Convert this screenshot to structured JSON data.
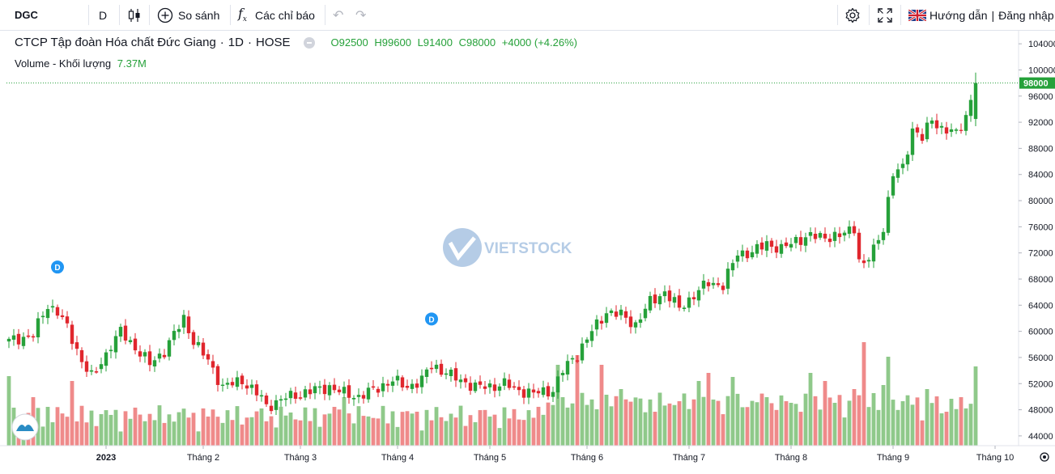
{
  "toolbar": {
    "symbol": "DGC",
    "interval": "D",
    "compare_label": "So sánh",
    "indicators_label": "Các chỉ báo",
    "help_label": "Hướng dẫn",
    "login_label": "Đăng nhập"
  },
  "legend": {
    "name": "CTCP Tập đoàn Hóa chất Đức Giang",
    "interval": "1D",
    "exchange": "HOSE",
    "open": "O92500",
    "high": "H99600",
    "low": "L91400",
    "close": "C98000",
    "change": "+4000 (+4.26%)",
    "volume_label": "Volume - Khối lượng",
    "volume_value": "7.37M"
  },
  "watermark": "VIETSTOCK",
  "colors": {
    "up": "#26a13a",
    "down": "#e0262d",
    "vol_up": "#8fc98a",
    "vol_down": "#ef8a8a",
    "marker": "#2196f3"
  },
  "chart_data": {
    "type": "candlestick",
    "y_ticks": [
      "104000",
      "100000",
      "96000",
      "92000",
      "88000",
      "84000",
      "80000",
      "76000",
      "72000",
      "68000",
      "64000",
      "60000",
      "56000",
      "52000",
      "48000",
      "44000"
    ],
    "y_tick_values": [
      104000,
      100000,
      96000,
      92000,
      88000,
      84000,
      80000,
      76000,
      72000,
      68000,
      64000,
      60000,
      56000,
      52000,
      48000,
      44000
    ],
    "ylim": [
      42500,
      106000
    ],
    "last_price": 98000,
    "last_price_label": "98000",
    "x_ticks": [
      "2023",
      "Tháng 2",
      "Tháng 3",
      "Tháng 4",
      "Tháng 5",
      "Tháng 6",
      "Tháng 7",
      "Tháng 8",
      "Tháng 9",
      "Tháng 10"
    ],
    "x_tick_index": [
      20,
      40,
      60,
      80,
      99,
      119,
      140,
      161,
      182,
      203
    ],
    "dividend_markers": [
      {
        "label": "D",
        "index": 10
      },
      {
        "label": "D",
        "index": 87
      }
    ],
    "anchors": [
      [
        0,
        58500
      ],
      [
        5,
        59500
      ],
      [
        8,
        64000
      ],
      [
        10,
        63000
      ],
      [
        12,
        60500
      ],
      [
        15,
        55500
      ],
      [
        17,
        53000
      ],
      [
        20,
        56500
      ],
      [
        23,
        60000
      ],
      [
        26,
        57500
      ],
      [
        29,
        55000
      ],
      [
        32,
        57000
      ],
      [
        34,
        59500
      ],
      [
        36,
        62000
      ],
      [
        38,
        58500
      ],
      [
        41,
        55500
      ],
      [
        44,
        51500
      ],
      [
        48,
        52500
      ],
      [
        51,
        50500
      ],
      [
        53,
        48500
      ],
      [
        56,
        49500
      ],
      [
        60,
        50500
      ],
      [
        63,
        51000
      ],
      [
        66,
        51500
      ],
      [
        69,
        50500
      ],
      [
        72,
        50000
      ],
      [
        75,
        51000
      ],
      [
        79,
        52500
      ],
      [
        82,
        51500
      ],
      [
        85,
        52500
      ],
      [
        87,
        55000
      ],
      [
        90,
        53500
      ],
      [
        93,
        52500
      ],
      [
        96,
        51500
      ],
      [
        99,
        51500
      ],
      [
        102,
        52000
      ],
      [
        105,
        51000
      ],
      [
        108,
        50500
      ],
      [
        112,
        51000
      ],
      [
        114,
        54000
      ],
      [
        117,
        56500
      ],
      [
        120,
        60000
      ],
      [
        123,
        63000
      ],
      [
        126,
        62500
      ],
      [
        129,
        61000
      ],
      [
        132,
        64500
      ],
      [
        135,
        66000
      ],
      [
        138,
        63500
      ],
      [
        141,
        65500
      ],
      [
        144,
        67500
      ],
      [
        147,
        67000
      ],
      [
        150,
        72000
      ],
      [
        153,
        72000
      ],
      [
        156,
        73500
      ],
      [
        159,
        72500
      ],
      [
        162,
        74000
      ],
      [
        165,
        74500
      ],
      [
        168,
        74500
      ],
      [
        171,
        74500
      ],
      [
        174,
        76000
      ],
      [
        175,
        71000
      ],
      [
        176,
        70000
      ],
      [
        178,
        72500
      ],
      [
        180,
        76000
      ],
      [
        182,
        84000
      ],
      [
        184,
        85000
      ],
      [
        186,
        91000
      ],
      [
        188,
        89500
      ],
      [
        190,
        92500
      ],
      [
        192,
        91000
      ],
      [
        194,
        90500
      ],
      [
        195,
        90000
      ],
      [
        197,
        93000
      ],
      [
        199,
        98000
      ]
    ],
    "last_candle": {
      "open": 92500,
      "high": 99600,
      "low": 91400,
      "close": 98000
    }
  }
}
